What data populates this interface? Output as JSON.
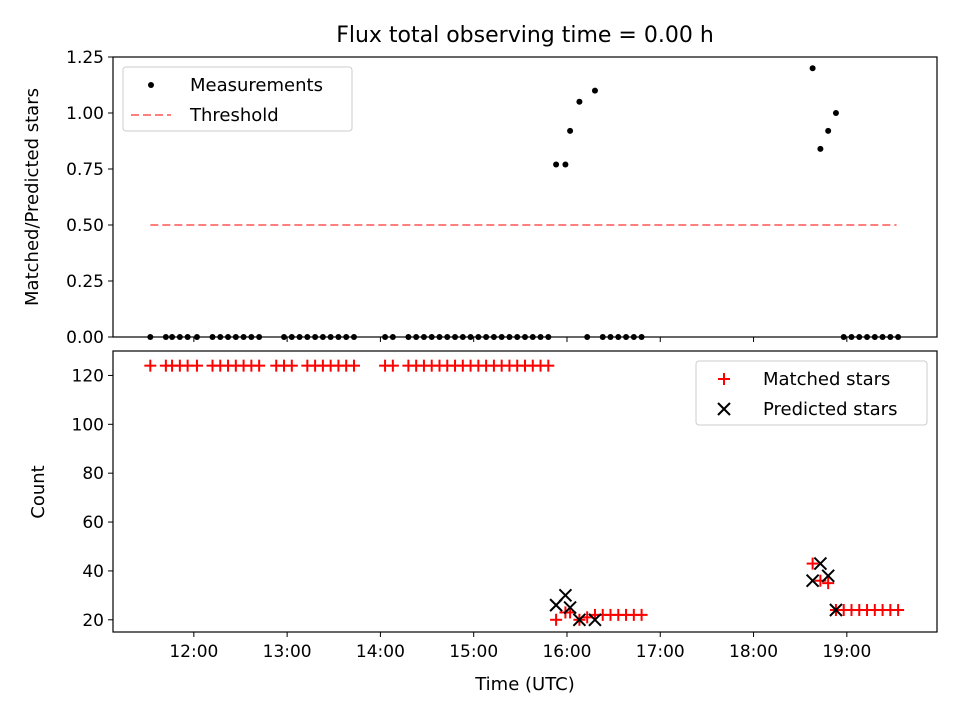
{
  "title": "Flux total observing time = 0.00 h",
  "chart_data": [
    {
      "type": "scatter",
      "ylabel": "Matched/Predicted stars",
      "xlabel": "",
      "x_ticks": [
        "12:00",
        "13:00",
        "14:00",
        "15:00",
        "16:00",
        "17:00",
        "18:00",
        "19:00"
      ],
      "y_ticks": [
        "0.00",
        "0.25",
        "0.50",
        "0.75",
        "1.00",
        "1.25"
      ],
      "xlim": [
        "11:08",
        "19:58"
      ],
      "ylim": [
        0,
        1.25
      ],
      "grid": false,
      "legend_position": "top-left",
      "series": [
        {
          "name": "Measurements",
          "style": "dot",
          "color": "#000000",
          "points": [
            [
              "11:32",
              0
            ],
            [
              "11:42",
              0
            ],
            [
              "11:46",
              0
            ],
            [
              "11:51",
              0
            ],
            [
              "11:56",
              0
            ],
            [
              "12:02",
              0
            ],
            [
              "12:12",
              0
            ],
            [
              "12:17",
              0
            ],
            [
              "12:22",
              0
            ],
            [
              "12:27",
              0
            ],
            [
              "12:32",
              0
            ],
            [
              "12:37",
              0
            ],
            [
              "12:42",
              0
            ],
            [
              "12:58",
              0
            ],
            [
              "13:03",
              0
            ],
            [
              "13:08",
              0
            ],
            [
              "13:13",
              0
            ],
            [
              "13:18",
              0
            ],
            [
              "13:23",
              0
            ],
            [
              "13:28",
              0
            ],
            [
              "13:33",
              0
            ],
            [
              "13:38",
              0
            ],
            [
              "13:43",
              0
            ],
            [
              "14:03",
              0
            ],
            [
              "14:08",
              0
            ],
            [
              "14:18",
              0
            ],
            [
              "14:23",
              0
            ],
            [
              "14:28",
              0
            ],
            [
              "14:33",
              0
            ],
            [
              "14:38",
              0
            ],
            [
              "14:43",
              0
            ],
            [
              "14:48",
              0
            ],
            [
              "14:53",
              0
            ],
            [
              "14:58",
              0
            ],
            [
              "15:03",
              0
            ],
            [
              "15:08",
              0
            ],
            [
              "15:13",
              0
            ],
            [
              "15:18",
              0
            ],
            [
              "15:23",
              0
            ],
            [
              "15:28",
              0
            ],
            [
              "15:33",
              0
            ],
            [
              "15:38",
              0
            ],
            [
              "15:43",
              0
            ],
            [
              "15:48",
              0
            ],
            [
              "15:53",
              0.77
            ],
            [
              "15:59",
              0.77
            ],
            [
              "16:02",
              0.92
            ],
            [
              "16:08",
              1.05
            ],
            [
              "16:18",
              1.1
            ],
            [
              "16:13",
              0
            ],
            [
              "16:23",
              0
            ],
            [
              "16:28",
              0
            ],
            [
              "16:33",
              0
            ],
            [
              "16:38",
              0
            ],
            [
              "16:43",
              0
            ],
            [
              "16:48",
              0
            ],
            [
              "18:38",
              1.2
            ],
            [
              "18:43",
              0.84
            ],
            [
              "18:48",
              0.92
            ],
            [
              "18:53",
              1.0
            ],
            [
              "18:58",
              0
            ],
            [
              "19:03",
              0
            ],
            [
              "19:08",
              0
            ],
            [
              "19:13",
              0
            ],
            [
              "19:18",
              0
            ],
            [
              "19:23",
              0
            ],
            [
              "19:28",
              0
            ],
            [
              "19:33",
              0
            ]
          ]
        },
        {
          "name": "Threshold",
          "style": "dashed-line",
          "color": "#ff7f7f",
          "points": [
            [
              "11:32",
              0.5
            ],
            [
              "19:32",
              0.5
            ]
          ]
        }
      ]
    },
    {
      "type": "scatter",
      "ylabel": "Count",
      "xlabel": "Time (UTC)",
      "x_ticks": [
        "12:00",
        "13:00",
        "14:00",
        "15:00",
        "16:00",
        "17:00",
        "18:00",
        "19:00"
      ],
      "y_ticks": [
        "20",
        "40",
        "60",
        "80",
        "100",
        "120"
      ],
      "xlim": [
        "11:08",
        "19:58"
      ],
      "ylim": [
        15,
        130
      ],
      "grid": false,
      "legend_position": "top-right",
      "series": [
        {
          "name": "Matched stars",
          "style": "plus",
          "color": "#ff0000",
          "points": [
            [
              "11:32",
              124
            ],
            [
              "11:42",
              124
            ],
            [
              "11:46",
              124
            ],
            [
              "11:51",
              124
            ],
            [
              "11:56",
              124
            ],
            [
              "12:02",
              124
            ],
            [
              "12:12",
              124
            ],
            [
              "12:17",
              124
            ],
            [
              "12:22",
              124
            ],
            [
              "12:27",
              124
            ],
            [
              "12:32",
              124
            ],
            [
              "12:37",
              124
            ],
            [
              "12:42",
              124
            ],
            [
              "12:53",
              124
            ],
            [
              "12:58",
              124
            ],
            [
              "13:03",
              124
            ],
            [
              "13:13",
              124
            ],
            [
              "13:18",
              124
            ],
            [
              "13:23",
              124
            ],
            [
              "13:28",
              124
            ],
            [
              "13:33",
              124
            ],
            [
              "13:38",
              124
            ],
            [
              "13:43",
              124
            ],
            [
              "14:03",
              124
            ],
            [
              "14:08",
              124
            ],
            [
              "14:18",
              124
            ],
            [
              "14:23",
              124
            ],
            [
              "14:28",
              124
            ],
            [
              "14:33",
              124
            ],
            [
              "14:38",
              124
            ],
            [
              "14:43",
              124
            ],
            [
              "14:48",
              124
            ],
            [
              "14:53",
              124
            ],
            [
              "14:58",
              124
            ],
            [
              "15:03",
              124
            ],
            [
              "15:08",
              124
            ],
            [
              "15:13",
              124
            ],
            [
              "15:18",
              124
            ],
            [
              "15:23",
              124
            ],
            [
              "15:28",
              124
            ],
            [
              "15:33",
              124
            ],
            [
              "15:38",
              124
            ],
            [
              "15:43",
              124
            ],
            [
              "15:48",
              124
            ],
            [
              "15:53",
              20
            ],
            [
              "15:59",
              23
            ],
            [
              "16:02",
              23
            ],
            [
              "16:08",
              20
            ],
            [
              "16:13",
              21
            ],
            [
              "16:18",
              22
            ],
            [
              "16:23",
              22
            ],
            [
              "16:28",
              22
            ],
            [
              "16:33",
              22
            ],
            [
              "16:38",
              22
            ],
            [
              "16:43",
              22
            ],
            [
              "16:48",
              22
            ],
            [
              "18:38",
              43
            ],
            [
              "18:43",
              36
            ],
            [
              "18:48",
              35
            ],
            [
              "18:53",
              24
            ],
            [
              "18:58",
              24
            ],
            [
              "19:03",
              24
            ],
            [
              "19:08",
              24
            ],
            [
              "19:13",
              24
            ],
            [
              "19:18",
              24
            ],
            [
              "19:23",
              24
            ],
            [
              "19:28",
              24
            ],
            [
              "19:33",
              24
            ]
          ]
        },
        {
          "name": "Predicted stars",
          "style": "x",
          "color": "#000000",
          "points": [
            [
              "15:53",
              26
            ],
            [
              "15:59",
              30
            ],
            [
              "16:02",
              25
            ],
            [
              "16:08",
              20
            ],
            [
              "16:18",
              20
            ],
            [
              "18:38",
              36
            ],
            [
              "18:43",
              43
            ],
            [
              "18:48",
              38
            ],
            [
              "18:53",
              24
            ]
          ]
        }
      ]
    }
  ]
}
